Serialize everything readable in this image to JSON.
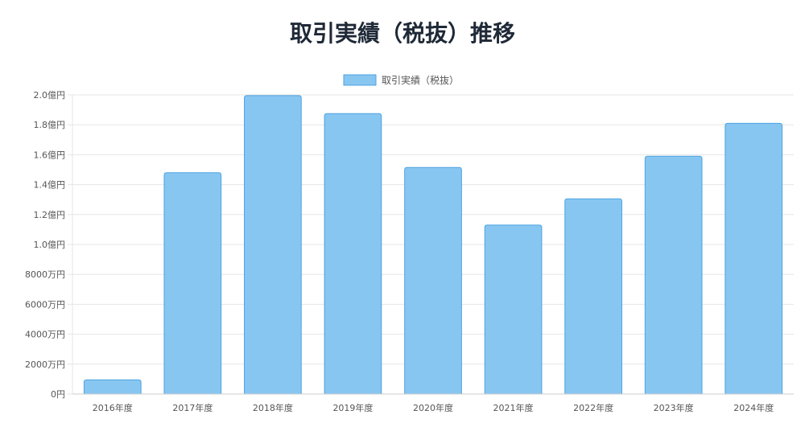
{
  "chart_data": {
    "type": "bar",
    "title": "取引実績（税抜）推移",
    "categories": [
      "2016年度",
      "2017年度",
      "2018年度",
      "2019年度",
      "2020年度",
      "2021年度",
      "2022年度",
      "2023年度",
      "2024年度"
    ],
    "series": [
      {
        "name": "取引実績（税抜）",
        "values": [
          9500000,
          148000000,
          199500000,
          187500000,
          151500000,
          113000000,
          130500000,
          159000000,
          181000000
        ]
      }
    ],
    "ylim": [
      0,
      200000000
    ],
    "yticks": [
      {
        "value": 0,
        "label": "0円"
      },
      {
        "value": 20000000,
        "label": "2000万円"
      },
      {
        "value": 40000000,
        "label": "4000万円"
      },
      {
        "value": 60000000,
        "label": "6000万円"
      },
      {
        "value": 80000000,
        "label": "8000万円"
      },
      {
        "value": 100000000,
        "label": "1.0億円"
      },
      {
        "value": 120000000,
        "label": "1.2億円"
      },
      {
        "value": 140000000,
        "label": "1.4億円"
      },
      {
        "value": 160000000,
        "label": "1.6億円"
      },
      {
        "value": 180000000,
        "label": "1.8億円"
      },
      {
        "value": 200000000,
        "label": "2.0億円"
      }
    ],
    "grid": true,
    "legend": "top-center",
    "colors": {
      "bar_fill": "#88c6f2",
      "bar_stroke": "#4da3e0",
      "grid": "#e5e5e5",
      "axis_text": "#555555"
    }
  }
}
